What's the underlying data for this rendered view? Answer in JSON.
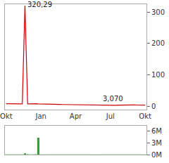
{
  "chart_data": [
    {
      "type": "line",
      "categories": [
        "Okt",
        null,
        null,
        null,
        null,
        null,
        null,
        null,
        null,
        null,
        null,
        null,
        null,
        "Jan",
        null,
        null,
        null,
        null,
        null,
        null,
        null,
        null,
        null,
        null,
        null,
        null,
        "Apr",
        null,
        null,
        null,
        null,
        null,
        null,
        null,
        null,
        null,
        null,
        null,
        null,
        "Jul",
        null,
        null,
        null,
        null,
        null,
        null,
        null,
        null,
        null,
        null,
        null,
        null,
        "Okt"
      ],
      "values": [
        8.1,
        8.0,
        7.9,
        8.2,
        7.8,
        7.6,
        7.7,
        320.29,
        7.5,
        7.9,
        8.4,
        8.2,
        7.6,
        7.2,
        6.9,
        7.1,
        6.8,
        6.5,
        6.7,
        6.3,
        6.0,
        5.8,
        5.6,
        5.9,
        5.5,
        5.2,
        5.0,
        4.8,
        5.1,
        4.7,
        4.5,
        4.3,
        4.4,
        4.1,
        3.9,
        3.8,
        3.6,
        3.5,
        3.4,
        3.3,
        3.07,
        3.3,
        3.6,
        3.9,
        4.2,
        4.0,
        4.4,
        4.6,
        4.3,
        4.1,
        4.5,
        4.2,
        4.0
      ],
      "color": "#cc0000",
      "ylim": [
        -10,
        325
      ],
      "yticks": [
        0,
        100,
        200,
        300
      ],
      "grid": false,
      "annotations": [
        {
          "text": "320,29",
          "x": 7,
          "y": 320.29
        },
        {
          "text": "3,070",
          "x": 40,
          "y": 3.07
        }
      ]
    },
    {
      "type": "bar",
      "categories": [
        "Okt",
        null,
        null,
        null,
        null,
        null,
        null,
        null,
        null,
        null,
        null,
        null,
        null,
        "Jan",
        null,
        null,
        null,
        null,
        null,
        null,
        null,
        null,
        null,
        null,
        null,
        null,
        "Apr",
        null,
        null,
        null,
        null,
        null,
        null,
        null,
        null,
        null,
        null,
        null,
        null,
        "Jul",
        null,
        null,
        null,
        null,
        null,
        null,
        null,
        null,
        null,
        null,
        null,
        null,
        "Okt"
      ],
      "values": [
        0.05,
        0.04,
        0.06,
        0.05,
        0.03,
        0.05,
        0.04,
        0.3,
        0.08,
        0.06,
        0.05,
        0.07,
        4.3,
        0.06,
        0.05,
        0.04,
        0.05,
        0.06,
        0.04,
        0.03,
        0.05,
        0.04,
        0.06,
        0.05,
        0.04,
        0.03,
        0.05,
        0.04,
        0.03,
        0.05,
        0.04,
        0.06,
        0.03,
        0.04,
        0.05,
        0.03,
        0.04,
        0.05,
        0.03,
        0.04,
        0.05,
        0.04,
        0.03,
        0.05,
        0.04,
        0.03,
        0.04,
        0.05,
        0.03,
        0.04,
        0.05,
        0.03,
        0.04
      ],
      "color": "#2e9e2e",
      "ylim": [
        0,
        7.3
      ],
      "yticks": [
        {
          "value": 0,
          "label": "0M"
        },
        {
          "value": 3,
          "label": "3M"
        },
        {
          "value": 6,
          "label": "6M"
        }
      ],
      "grid": false,
      "tick_labels": "y"
    }
  ]
}
